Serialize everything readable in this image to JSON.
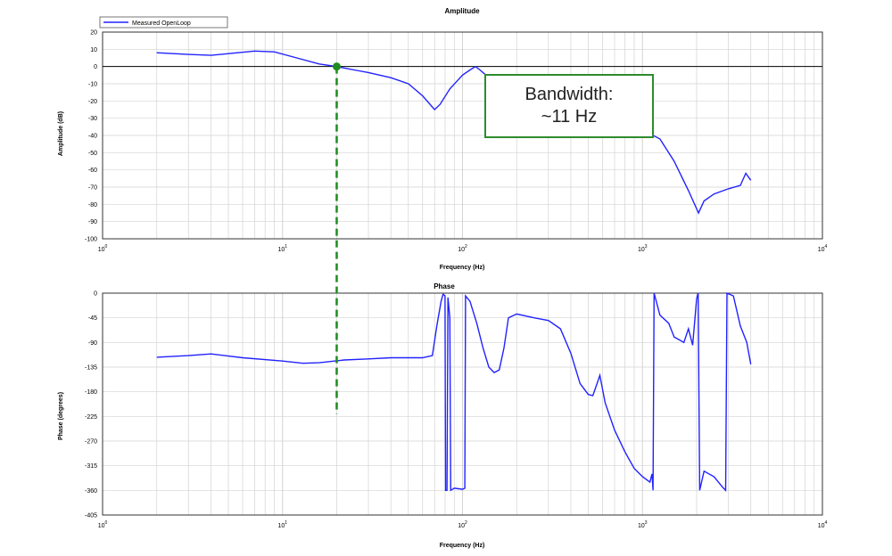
{
  "colors": {
    "series": "#2222ff",
    "marker": "#1e8c1e",
    "grid": "#d3d3d3",
    "zero_line": "#000000"
  },
  "legend": {
    "label": "Measured OpenLoop",
    "placement": "top-left"
  },
  "annotation": {
    "line1": "Bandwidth:",
    "line2": "~11 Hz"
  },
  "chart_data": [
    {
      "type": "line",
      "title": "Amplitude",
      "xlabel": "Frequency (Hz)",
      "ylabel": "Amplitude (dB)",
      "x_scale": "log",
      "xlim": [
        1,
        10000
      ],
      "ylim": [
        -100,
        20
      ],
      "x_ticks": [
        {
          "value": 1,
          "base": "10",
          "exp": "0"
        },
        {
          "value": 10,
          "base": "10",
          "exp": "1"
        },
        {
          "value": 100,
          "base": "10",
          "exp": "2"
        },
        {
          "value": 1000,
          "base": "10",
          "exp": "3"
        },
        {
          "value": 10000,
          "base": "10",
          "exp": "4"
        }
      ],
      "y_ticks": [
        20,
        10,
        0,
        -10,
        -20,
        -30,
        -40,
        -50,
        -60,
        -70,
        -80,
        -90,
        -100
      ],
      "grid": true,
      "series": [
        {
          "name": "Measured OpenLoop",
          "points": [
            [
              2,
              8
            ],
            [
              3,
              7
            ],
            [
              4,
              6.5
            ],
            [
              5,
              7.5
            ],
            [
              7,
              9
            ],
            [
              9,
              8.5
            ],
            [
              12,
              5
            ],
            [
              16,
              1.5
            ],
            [
              20,
              0
            ],
            [
              25,
              -2
            ],
            [
              30,
              -3.5
            ],
            [
              40,
              -6.5
            ],
            [
              50,
              -10
            ],
            [
              60,
              -17
            ],
            [
              70,
              -25
            ],
            [
              75,
              -22
            ],
            [
              85,
              -13
            ],
            [
              100,
              -5
            ],
            [
              110,
              -2
            ],
            [
              118,
              0
            ],
            [
              125,
              -2
            ],
            [
              135,
              -5
            ],
            [
              150,
              -10
            ],
            [
              200,
              -18
            ],
            [
              300,
              -25
            ],
            [
              500,
              -30
            ],
            [
              700,
              -32
            ],
            [
              900,
              -32
            ],
            [
              1050,
              -38
            ],
            [
              1250,
              -42
            ],
            [
              1500,
              -55
            ],
            [
              1800,
              -72
            ],
            [
              2050,
              -85
            ],
            [
              2200,
              -78
            ],
            [
              2500,
              -74
            ],
            [
              3000,
              -71
            ],
            [
              3500,
              -69
            ],
            [
              3750,
              -62
            ],
            [
              4000,
              -66
            ]
          ]
        }
      ],
      "markers": [
        {
          "x": 20,
          "y": 0
        }
      ]
    },
    {
      "type": "line",
      "title": "Phase",
      "xlabel": "Frequency (Hz)",
      "ylabel": "Phase (degrees)",
      "x_scale": "log",
      "xlim": [
        1,
        10000
      ],
      "ylim": [
        -405,
        0
      ],
      "x_ticks": [
        {
          "value": 1,
          "base": "10",
          "exp": "0"
        },
        {
          "value": 10,
          "base": "10",
          "exp": "1"
        },
        {
          "value": 100,
          "base": "10",
          "exp": "2"
        },
        {
          "value": 1000,
          "base": "10",
          "exp": "3"
        },
        {
          "value": 10000,
          "base": "10",
          "exp": "4"
        }
      ],
      "y_ticks": [
        0,
        -45,
        -90,
        -135,
        -180,
        -225,
        -270,
        -315,
        -360,
        -405
      ],
      "grid": true,
      "series": [
        {
          "name": "Measured OpenLoop",
          "points": [
            [
              2,
              -117
            ],
            [
              3,
              -114
            ],
            [
              4,
              -111
            ],
            [
              6,
              -118
            ],
            [
              10,
              -124
            ],
            [
              13,
              -128
            ],
            [
              16,
              -127
            ],
            [
              22,
              -122
            ],
            [
              30,
              -120
            ],
            [
              40,
              -118
            ],
            [
              50,
              -118
            ],
            [
              60,
              -118
            ],
            [
              68,
              -114
            ],
            [
              72,
              -60
            ],
            [
              76,
              -15
            ],
            [
              78,
              -2
            ],
            [
              80,
              -5
            ],
            [
              80.5,
              -360
            ],
            [
              82,
              -360
            ],
            [
              83,
              -8
            ],
            [
              85,
              -45
            ],
            [
              86,
              -360
            ],
            [
              90,
              -356
            ],
            [
              100,
              -358
            ],
            [
              103,
              -356
            ],
            [
              104,
              -5
            ],
            [
              110,
              -15
            ],
            [
              120,
              -55
            ],
            [
              130,
              -100
            ],
            [
              140,
              -135
            ],
            [
              150,
              -145
            ],
            [
              160,
              -140
            ],
            [
              170,
              -100
            ],
            [
              180,
              -45
            ],
            [
              200,
              -38
            ],
            [
              250,
              -45
            ],
            [
              300,
              -50
            ],
            [
              350,
              -65
            ],
            [
              400,
              -110
            ],
            [
              450,
              -165
            ],
            [
              500,
              -185
            ],
            [
              530,
              -187
            ],
            [
              560,
              -165
            ],
            [
              580,
              -150
            ],
            [
              620,
              -200
            ],
            [
              700,
              -250
            ],
            [
              800,
              -290
            ],
            [
              900,
              -320
            ],
            [
              1000,
              -335
            ],
            [
              1100,
              -345
            ],
            [
              1130,
              -330
            ],
            [
              1145,
              -360
            ],
            [
              1160,
              0
            ],
            [
              1250,
              -40
            ],
            [
              1400,
              -55
            ],
            [
              1500,
              -80
            ],
            [
              1700,
              -90
            ],
            [
              1800,
              -65
            ],
            [
              1900,
              -95
            ],
            [
              2000,
              -10
            ],
            [
              2040,
              0
            ],
            [
              2080,
              -360
            ],
            [
              2200,
              -325
            ],
            [
              2500,
              -335
            ],
            [
              2800,
              -355
            ],
            [
              2900,
              -360
            ],
            [
              2950,
              0
            ],
            [
              3200,
              -5
            ],
            [
              3500,
              -60
            ],
            [
              3800,
              -90
            ],
            [
              4000,
              -130
            ]
          ]
        }
      ],
      "markers": []
    }
  ]
}
